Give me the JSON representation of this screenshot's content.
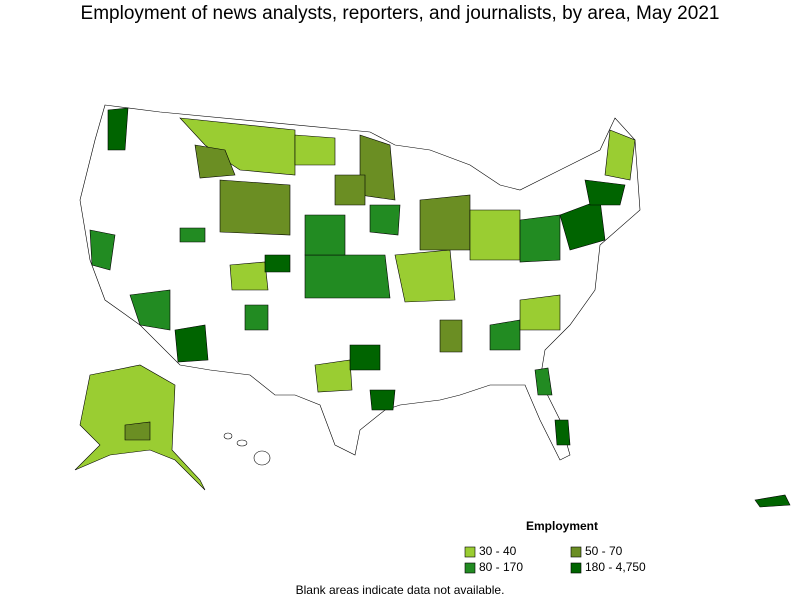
{
  "title": "Employment of news analysts, reporters, and journalists, by area, May 2021",
  "legend": {
    "title": "Employment",
    "items": [
      {
        "label": "30 - 40",
        "color": "#9acd32"
      },
      {
        "label": "50 - 70",
        "color": "#6b8e23"
      },
      {
        "label": "80 - 170",
        "color": "#228b22"
      },
      {
        "label": "180 - 4,750",
        "color": "#006400"
      }
    ]
  },
  "footnote": "Blank areas indicate data not available."
}
